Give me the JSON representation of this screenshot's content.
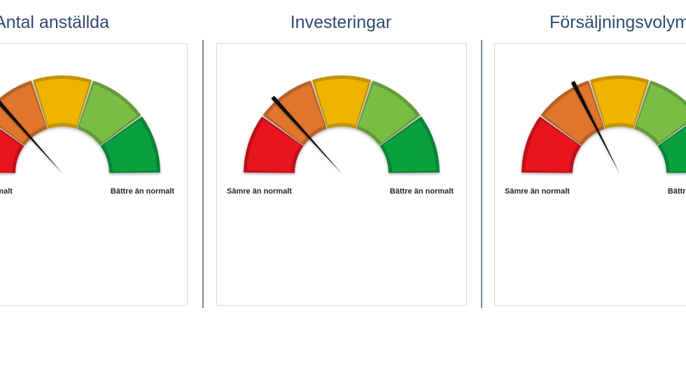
{
  "style": {
    "background": "#FFFFFF",
    "title_color": "#2F4A6E",
    "label_color": "#262626",
    "panel_border_color": "#D8D8D8",
    "divider_color": "#7B8B9D",
    "needle_color": "#0D0D0D"
  },
  "chart_data": [
    {
      "type": "gauge",
      "title": "Antal anställda",
      "min_label": "Sämre än normalt",
      "max_label": "Bättre än normalt",
      "scale": [
        0,
        100
      ],
      "needle_value": 27,
      "needle_angle_deg": 131.6,
      "segments": [
        {
          "name": "red",
          "from": 0,
          "to": 20,
          "color": "#E8141E"
        },
        {
          "name": "orange",
          "from": 20,
          "to": 40,
          "color": "#E2762D"
        },
        {
          "name": "yellow",
          "from": 40,
          "to": 60,
          "color": "#EFB400"
        },
        {
          "name": "light-green",
          "from": 60,
          "to": 80,
          "color": "#7ABD45"
        },
        {
          "name": "green",
          "from": 80,
          "to": 100,
          "color": "#0BA03F"
        }
      ]
    },
    {
      "type": "gauge",
      "title": "Investeringar",
      "min_label": "Sämre än normalt",
      "max_label": "Bättre än normalt",
      "scale": [
        0,
        100
      ],
      "needle_value": 27,
      "needle_angle_deg": 132.1,
      "segments": [
        {
          "name": "red",
          "from": 0,
          "to": 20,
          "color": "#E8141E"
        },
        {
          "name": "orange",
          "from": 20,
          "to": 40,
          "color": "#E2762D"
        },
        {
          "name": "yellow",
          "from": 40,
          "to": 60,
          "color": "#EFB400"
        },
        {
          "name": "light-green",
          "from": 60,
          "to": 80,
          "color": "#7ABD45"
        },
        {
          "name": "green",
          "from": 80,
          "to": 100,
          "color": "#0BA03F"
        }
      ]
    },
    {
      "type": "gauge",
      "title": "Försäljningsvolym",
      "min_label": "Sämre än normalt",
      "max_label": "Bättre än normalt",
      "scale": [
        0,
        100
      ],
      "needle_value": 35,
      "needle_angle_deg": 117,
      "segments": [
        {
          "name": "red",
          "from": 0,
          "to": 20,
          "color": "#E8141E"
        },
        {
          "name": "orange",
          "from": 20,
          "to": 40,
          "color": "#E2762D"
        },
        {
          "name": "yellow",
          "from": 40,
          "to": 60,
          "color": "#EFB400"
        },
        {
          "name": "light-green",
          "from": 60,
          "to": 80,
          "color": "#7ABD45"
        },
        {
          "name": "green",
          "from": 80,
          "to": 100,
          "color": "#0BA03F"
        }
      ]
    }
  ]
}
